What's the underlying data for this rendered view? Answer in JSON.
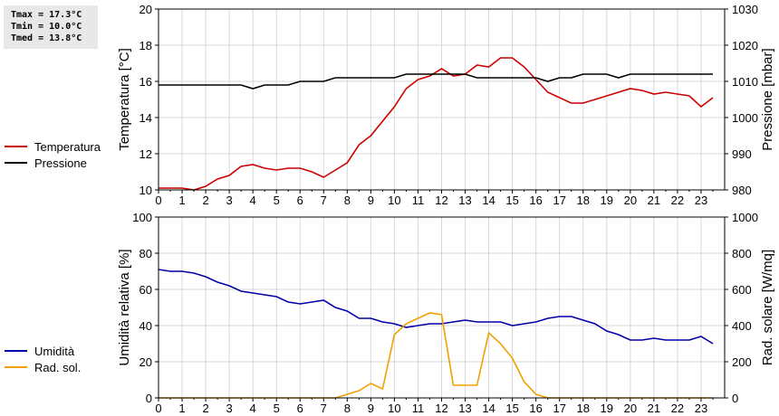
{
  "stats": {
    "tmax": "Tmax = 17.3°C",
    "tmin": "Tmin = 10.0°C",
    "tmed": "Tmed = 13.8°C"
  },
  "colors": {
    "temperature": "#cc0000",
    "pressure": "#000000",
    "humidity": "#0000aa",
    "radiation": "#f0a000",
    "grid": "#d8d8d8"
  },
  "chart_data": [
    {
      "type": "line",
      "ylabel": "Temperatura [°C]",
      "y2label": "Pressione [mbar]",
      "ylim": [
        10,
        20
      ],
      "y2lim": [
        980,
        1030
      ],
      "yticks": [
        10,
        12,
        14,
        16,
        18,
        20
      ],
      "y2ticks": [
        980,
        990,
        1000,
        1010,
        1020,
        1030
      ],
      "xlim": [
        0,
        24
      ],
      "xticks": [
        0,
        1,
        2,
        3,
        4,
        5,
        6,
        7,
        8,
        9,
        10,
        11,
        12,
        13,
        14,
        15,
        16,
        17,
        18,
        19,
        20,
        21,
        22,
        23
      ],
      "grid": true,
      "legend": "left",
      "x": [
        0,
        0.5,
        1,
        1.5,
        2,
        2.5,
        3,
        3.5,
        4,
        4.5,
        5,
        5.5,
        6,
        6.5,
        7,
        7.5,
        8,
        8.5,
        9,
        9.5,
        10,
        10.5,
        11,
        11.5,
        12,
        12.5,
        13,
        13.5,
        14,
        14.5,
        15,
        15.5,
        16,
        16.5,
        17,
        17.5,
        18,
        18.5,
        19,
        19.5,
        20,
        20.5,
        21,
        21.5,
        22,
        22.5,
        23,
        23.5
      ],
      "series": [
        {
          "name": "Temperatura",
          "axis": "left",
          "values": [
            10.1,
            10.1,
            10.1,
            10.0,
            10.2,
            10.6,
            10.8,
            11.3,
            11.4,
            11.2,
            11.1,
            11.2,
            11.2,
            11.0,
            10.7,
            11.1,
            11.5,
            12.5,
            13.0,
            13.8,
            14.6,
            15.6,
            16.1,
            16.3,
            16.7,
            16.3,
            16.4,
            16.9,
            16.8,
            17.3,
            17.3,
            16.8,
            16.1,
            15.4,
            15.1,
            14.8,
            14.8,
            15.0,
            15.2,
            15.4,
            15.6,
            15.5,
            15.3,
            15.4,
            15.3,
            15.2,
            14.6,
            15.1
          ]
        },
        {
          "name": "Pressione",
          "axis": "right",
          "values": [
            1009,
            1009,
            1009,
            1009,
            1009,
            1009,
            1009,
            1009,
            1008,
            1009,
            1009,
            1009,
            1010,
            1010,
            1010,
            1011,
            1011,
            1011,
            1011,
            1011,
            1011,
            1012,
            1012,
            1012,
            1012,
            1012,
            1012,
            1011,
            1011,
            1011,
            1011,
            1011,
            1011,
            1010,
            1011,
            1011,
            1012,
            1012,
            1012,
            1011,
            1012,
            1012,
            1012,
            1012,
            1012,
            1012,
            1012,
            1012
          ]
        }
      ]
    },
    {
      "type": "line",
      "ylabel": "Umidità relativa [%]",
      "y2label": "Rad. solare [W/mq]",
      "ylim": [
        0,
        100
      ],
      "y2lim": [
        0,
        1000
      ],
      "yticks": [
        0,
        20,
        40,
        60,
        80,
        100
      ],
      "y2ticks": [
        0,
        200,
        400,
        600,
        800,
        1000
      ],
      "xlim": [
        0,
        24
      ],
      "xticks": [
        0,
        1,
        2,
        3,
        4,
        5,
        6,
        7,
        8,
        9,
        10,
        11,
        12,
        13,
        14,
        15,
        16,
        17,
        18,
        19,
        20,
        21,
        22,
        23
      ],
      "grid": true,
      "legend": "left",
      "x": [
        0,
        0.5,
        1,
        1.5,
        2,
        2.5,
        3,
        3.5,
        4,
        4.5,
        5,
        5.5,
        6,
        6.5,
        7,
        7.5,
        8,
        8.5,
        9,
        9.5,
        10,
        10.5,
        11,
        11.5,
        12,
        12.5,
        13,
        13.5,
        14,
        14.5,
        15,
        15.5,
        16,
        16.5,
        17,
        17.5,
        18,
        18.5,
        19,
        19.5,
        20,
        20.5,
        21,
        21.5,
        22,
        22.5,
        23,
        23.5
      ],
      "series": [
        {
          "name": "Umidità",
          "axis": "left",
          "values": [
            71,
            70,
            70,
            69,
            67,
            64,
            62,
            59,
            58,
            57,
            56,
            53,
            52,
            53,
            54,
            50,
            48,
            44,
            44,
            42,
            41,
            39,
            40,
            41,
            41,
            42,
            43,
            42,
            42,
            42,
            40,
            41,
            42,
            44,
            45,
            45,
            43,
            41,
            37,
            35,
            32,
            32,
            33,
            32,
            32,
            32,
            34,
            30
          ]
        },
        {
          "name": "Rad. sol.",
          "axis": "right",
          "values": [
            0,
            0,
            0,
            0,
            0,
            0,
            0,
            0,
            0,
            0,
            0,
            0,
            0,
            0,
            0,
            0,
            20,
            40,
            80,
            50,
            350,
            410,
            440,
            470,
            460,
            70,
            70,
            70,
            360,
            300,
            220,
            90,
            20,
            0,
            0,
            0,
            0,
            0,
            0,
            0,
            0,
            0,
            0,
            0,
            0,
            0,
            0,
            0
          ]
        }
      ]
    }
  ]
}
